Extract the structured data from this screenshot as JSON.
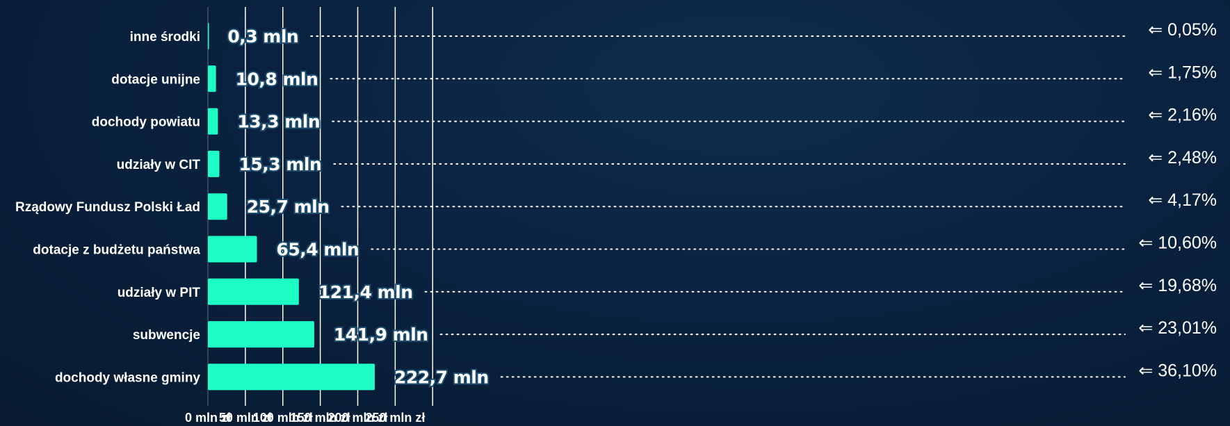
{
  "chart_data": {
    "type": "bar",
    "orientation": "horizontal",
    "categories": [
      "inne środki",
      "dotacje unijne",
      "dochody powiatu",
      "udziały w CIT",
      "Rządowy Fundusz Polski Ład",
      "dotacje z budżetu państwa",
      "udziały w PIT",
      "subwencje",
      "dochody własne gminy"
    ],
    "values": [
      0.3,
      10.8,
      13.3,
      15.3,
      25.7,
      65.4,
      121.4,
      141.9,
      222.7
    ],
    "value_labels": [
      "0,3 mln",
      "10,8 mln",
      "13,3 mln",
      "15,3 mln",
      "25,7 mln",
      "65,4 mln",
      "121,4 mln",
      "141,9 mln",
      "222,7 mln"
    ],
    "percent_labels": [
      "⇐ 0,05%",
      "⇐ 1,75%",
      "⇐ 2,16%",
      "⇐ 2,48%",
      "⇐ 4,17%",
      "⇐ 10,60%",
      "⇐ 19,68%",
      "⇐ 23,01%",
      "⇐ 36,10%"
    ],
    "x_ticks": [
      0,
      50,
      100,
      150,
      200,
      250
    ],
    "x_tick_labels": [
      "0 mln zł",
      "50 mln zł",
      "100 mln zł",
      "150 mln zł",
      "200 mln zł",
      "250 mln zł"
    ],
    "xlim": [
      0,
      300
    ],
    "grid": true,
    "title": "",
    "xlabel": "",
    "ylabel": "",
    "colors": {
      "bar": "#1effc6",
      "background": "#0a2240",
      "grid": "#ffffff",
      "text": "#ffffff",
      "label_outline": "#1e4d6e"
    }
  }
}
